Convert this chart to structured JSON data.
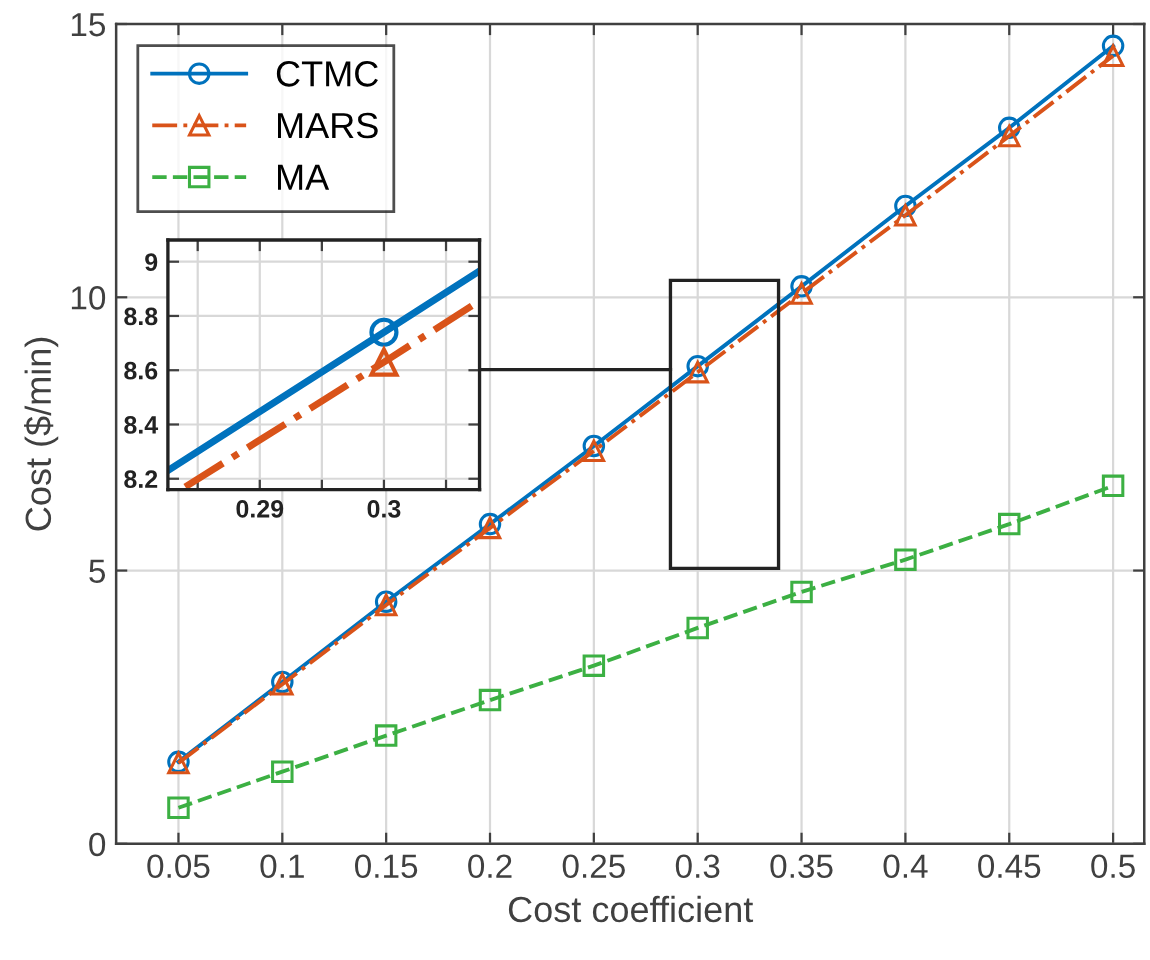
{
  "chart_data": [
    {
      "type": "line",
      "xlabel": "Cost coefficient",
      "ylabel": "Cost ($/min)",
      "x": [
        0.05,
        0.1,
        0.15,
        0.2,
        0.25,
        0.3,
        0.35,
        0.4,
        0.45,
        0.5
      ],
      "xlim": [
        0.02,
        0.515
      ],
      "ylim": [
        0,
        15
      ],
      "xticks": [
        0.05,
        0.1,
        0.15,
        0.2,
        0.25,
        0.3,
        0.35,
        0.4,
        0.45,
        0.5
      ],
      "yticks": [
        0,
        5,
        10,
        15
      ],
      "grid": true,
      "legend": "top left",
      "series": [
        {
          "name": "CTMC",
          "color": "#0072bd",
          "marker": "circle",
          "line_style": "solid",
          "values": [
            1.5,
            2.96,
            4.43,
            5.85,
            7.28,
            8.74,
            10.2,
            11.67,
            13.1,
            14.6
          ]
        },
        {
          "name": "MARS",
          "color": "#d95319",
          "marker": "triangle",
          "line_style": "dashdot",
          "values": [
            1.48,
            2.92,
            4.37,
            5.78,
            7.19,
            8.63,
            10.07,
            11.5,
            12.95,
            14.42
          ]
        },
        {
          "name": "MA",
          "color": "#3cb043",
          "marker": "square",
          "line_style": "dashed",
          "values": [
            0.66,
            1.32,
            1.98,
            2.63,
            3.26,
            3.95,
            4.61,
            5.2,
            5.85,
            6.55
          ]
        }
      ]
    },
    {
      "type": "line",
      "xlim": [
        0.2826,
        0.3077
      ],
      "ylim": [
        8.16,
        9.08
      ],
      "xticks": [
        {
          "value": 0.285,
          "label": null
        },
        0.29,
        {
          "value": 0.295,
          "label": null
        },
        0.3,
        {
          "value": 0.305,
          "label": null
        }
      ],
      "yticks": [
        8.2,
        8.4,
        8.6,
        8.8,
        9
      ],
      "grid": true,
      "series": [
        {
          "color": "#0072bd",
          "line_style": "solid",
          "x": [
            0.2826,
            0.3,
            0.3075
          ],
          "values": [
            8.23,
            8.74,
            8.96
          ]
        },
        {
          "color": "#d95319",
          "line_style": "dashdot",
          "x": [
            0.284,
            0.3,
            0.3075
          ],
          "values": [
            8.17,
            8.63,
            8.85
          ]
        },
        {
          "type": "scatter",
          "color": "#0072bd",
          "marker": "circle",
          "x": [
            0.3
          ],
          "values": [
            8.74
          ]
        },
        {
          "type": "scatter",
          "color": "#d95319",
          "marker": "triangle",
          "x": [
            0.3
          ],
          "values": [
            8.63
          ]
        }
      ]
    }
  ]
}
